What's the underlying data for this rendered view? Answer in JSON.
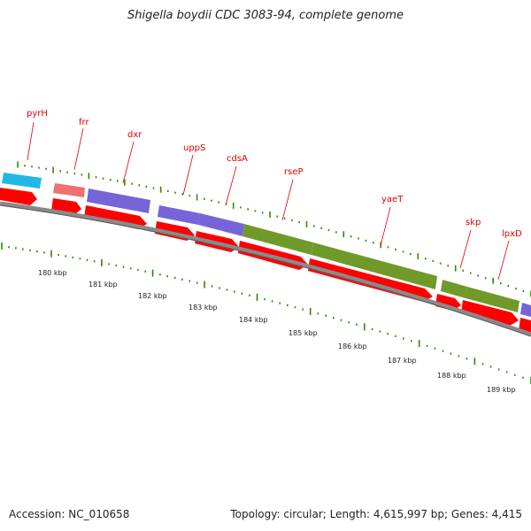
{
  "title": "Shigella boydii CDC 3083-94, complete genome",
  "footer": {
    "accession": "Accession: NC_010658",
    "summary": "Topology: circular; Length: 4,615,997 bp; Genes: 4,415"
  },
  "colors": {
    "cds_arrow": "#ff0000",
    "backbone": "#8a8a8a",
    "tick": "#2e8b00",
    "label": "#e00000",
    "cyan_feature": "#22b8e6",
    "pink_feature": "#f07070",
    "purple_feature": "#7565d8",
    "olive_feature": "#6f9a2a"
  },
  "genes": [
    "pyrH",
    "frr",
    "dxr",
    "uppS",
    "cdsA",
    "rseP",
    "yaeT",
    "skp",
    "lpxD"
  ],
  "kbp_labels": [
    "180 kbp",
    "181 kbp",
    "182 kbp",
    "183 kbp",
    "184 kbp",
    "185 kbp",
    "186 kbp",
    "187 kbp",
    "188 kbp",
    "189 kbp"
  ]
}
